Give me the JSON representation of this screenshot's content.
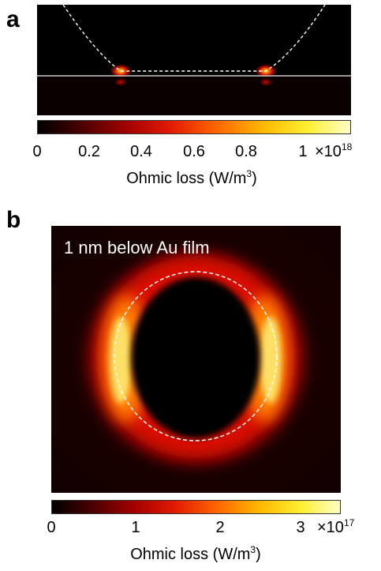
{
  "panel_a": {
    "letter": "a",
    "colorbar": {
      "ticks": [
        "0",
        "0.2",
        "0.4",
        "0.6",
        "0.8",
        "1"
      ],
      "multiplier_prefix": "×10",
      "multiplier_exp": "18",
      "label_text": "Ohmic loss (W/m",
      "label_sup": "3",
      "label_close": ")"
    }
  },
  "panel_b": {
    "letter": "b",
    "inset": "1 nm below Au film",
    "colorbar": {
      "ticks": [
        "0",
        "1",
        "2",
        "3"
      ],
      "multiplier_prefix": "×10",
      "multiplier_exp": "17",
      "label_text": "Ohmic loss (W/m",
      "label_sup": "3",
      "label_close": ")"
    }
  },
  "colors": {
    "colormap": [
      "#000000",
      "#5a0000",
      "#b80000",
      "#ff2a00",
      "#ff8a00",
      "#ffe000",
      "#ffffb0",
      "#ffffff"
    ],
    "dashed_line": "#ffffff",
    "substrate_line": "#c8c8c8"
  }
}
